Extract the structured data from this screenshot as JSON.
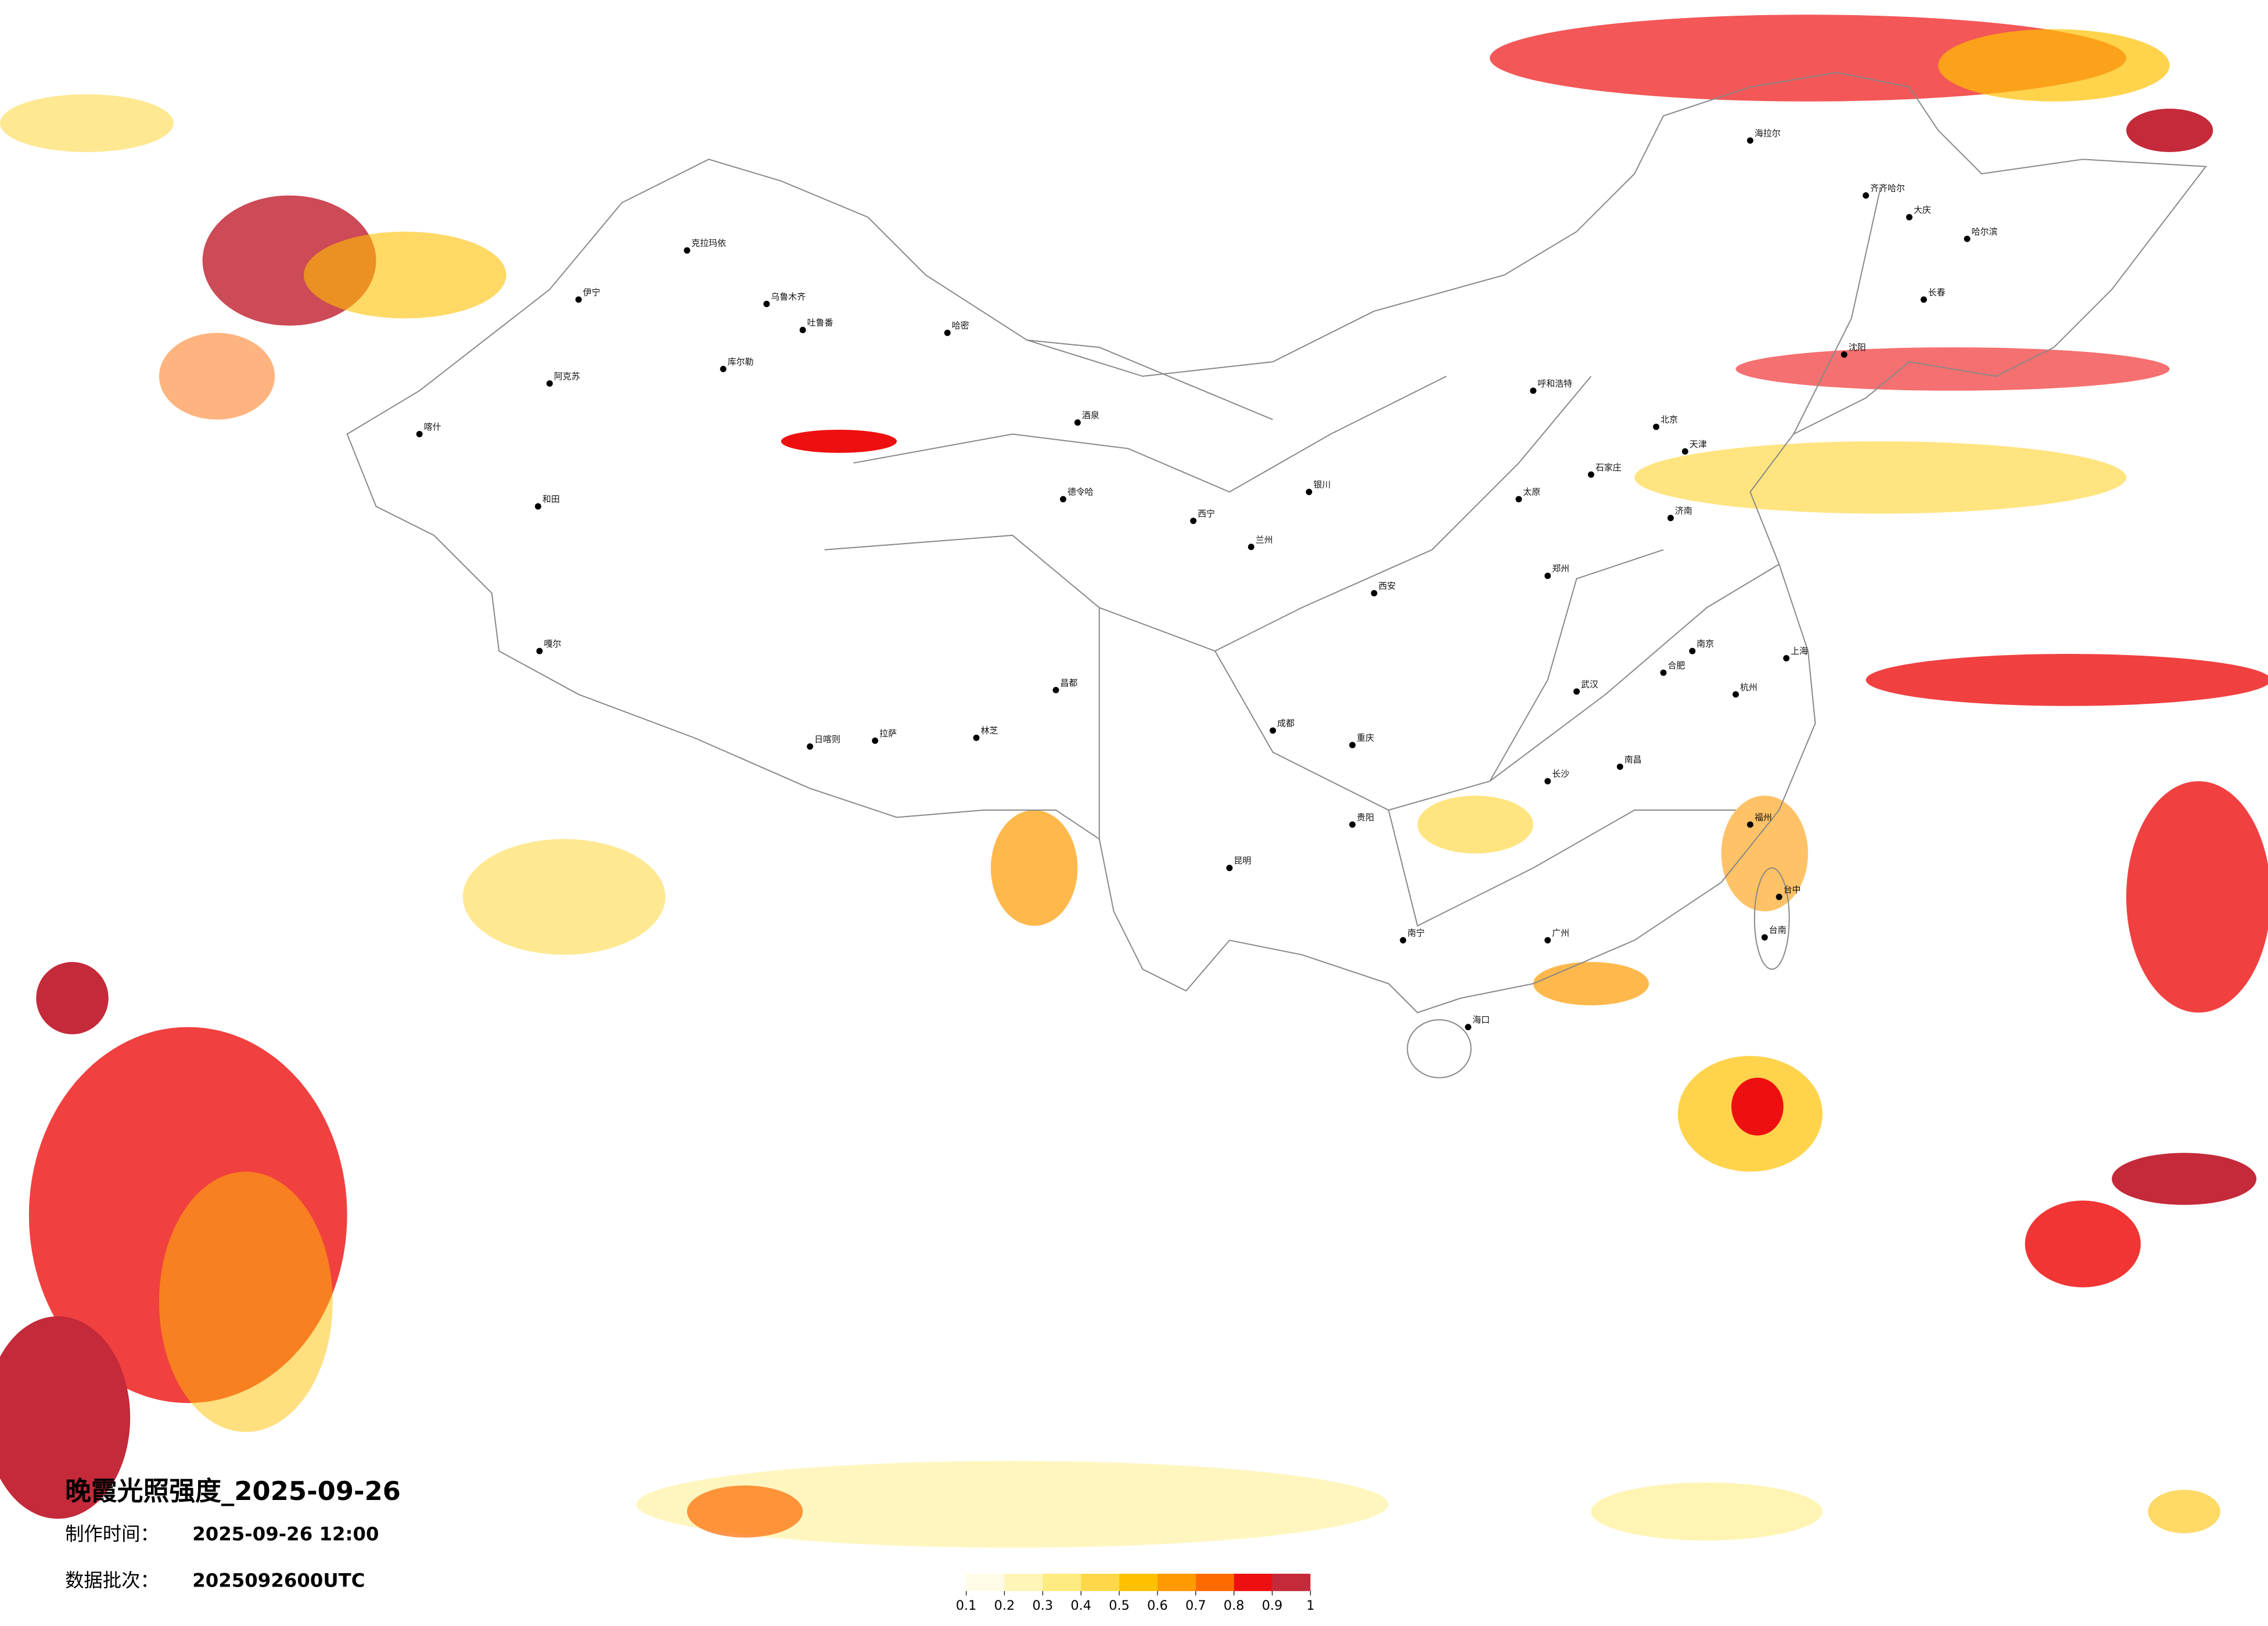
{
  "title": "晚霞光照强度_2025-09-26",
  "info": [
    {
      "label": "制作时间：",
      "value": "2025-09-26 12:00"
    },
    {
      "label": "数据批次：",
      "value": "2025092600UTC"
    }
  ],
  "legend": {
    "ticks": [
      0.1,
      0.2,
      0.3,
      0.4,
      0.5,
      0.6,
      0.7,
      0.8,
      0.9,
      1
    ],
    "colors": [
      "#fffbe6",
      "#fff5b8",
      "#ffec80",
      "#ffd84a",
      "#ffc000",
      "#ff9a00",
      "#ff6a00",
      "#ee1010",
      "#c42a3a"
    ]
  },
  "cities": [
    "克拉玛依",
    "伊宁",
    "乌鲁木齐",
    "吐鲁番",
    "库尔勒",
    "阿克苏",
    "喀什",
    "和田",
    "哈密",
    "嘎尔",
    "酒泉",
    "德令哈",
    "日喀则",
    "拉萨",
    "林芝",
    "昌都",
    "西宁",
    "兰州",
    "银川",
    "呼和浩特",
    "北京",
    "天津",
    "石家庄",
    "太原",
    "济南",
    "郑州",
    "西安",
    "成都",
    "重庆",
    "贵阳",
    "昆明",
    "南宁",
    "广州",
    "长沙",
    "武汉",
    "南昌",
    "合肥",
    "南京",
    "上海",
    "杭州",
    "福州",
    "台中",
    "台南",
    "海口",
    "沈阳",
    "长春",
    "哈尔滨",
    "齐齐哈尔",
    "大庆",
    "海拉尔"
  ]
}
